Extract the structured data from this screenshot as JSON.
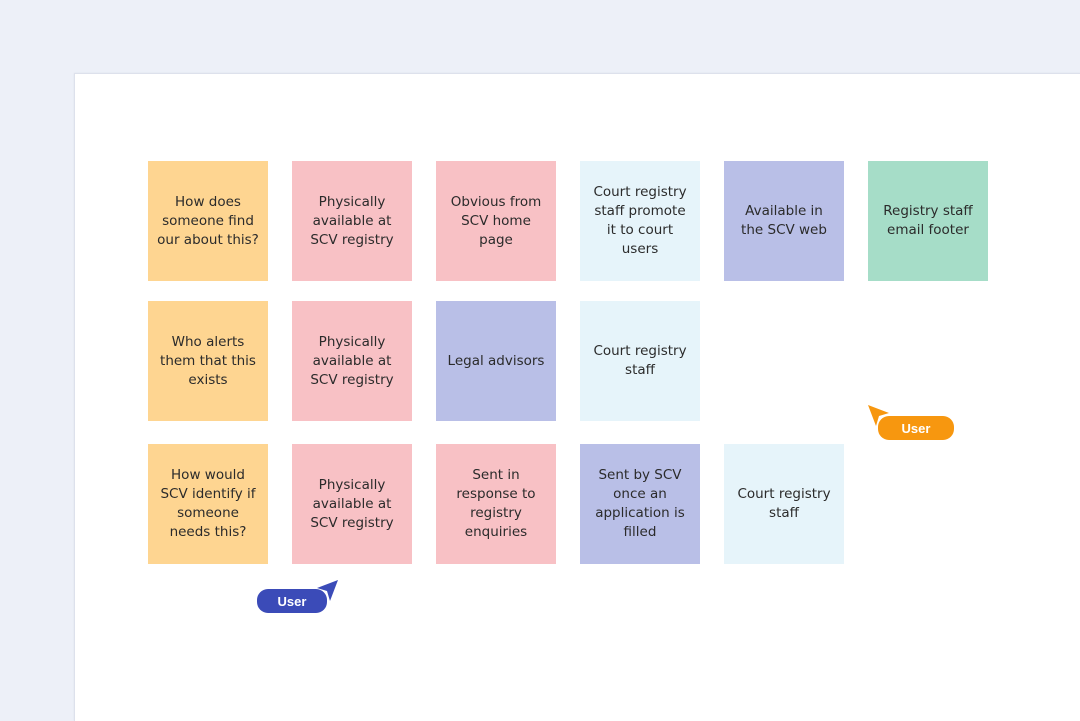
{
  "notes": [
    {
      "text": "How does someone find our about this?",
      "color": "#fed591"
    },
    {
      "text": "Physically available at SCV registry",
      "color": "#f8c1c5"
    },
    {
      "text": "Obvious from SCV home page",
      "color": "#f8c1c5"
    },
    {
      "text": "Court registry staff promote it to court users",
      "color": "#e6f4fa"
    },
    {
      "text": "Available in the SCV web",
      "color": "#b9bfe7"
    },
    {
      "text": "Registry staff email footer",
      "color": "#a6ddc8"
    },
    {
      "text": "Who alerts them that this exists",
      "color": "#fed591"
    },
    {
      "text": "Physically available at SCV registry",
      "color": "#f8c1c5"
    },
    {
      "text": "Legal advisors",
      "color": "#b9bfe7"
    },
    {
      "text": "Court registry staff",
      "color": "#e6f4fa"
    },
    {
      "text": "How would SCV identify if someone needs this?",
      "color": "#fed591"
    },
    {
      "text": "Physically available at SCV registry",
      "color": "#f8c1c5"
    },
    {
      "text": "Sent in response to registry enquiries",
      "color": "#f8c1c5"
    },
    {
      "text": "Sent by SCV once an application is filled",
      "color": "#b9bfe7"
    },
    {
      "text": "Court registry staff",
      "color": "#e6f4fa"
    }
  ],
  "cursors": [
    {
      "label": "User",
      "color": "#f7970f",
      "icon": "cursor-arrow-icon"
    },
    {
      "label": "User",
      "color": "#3b4bb8",
      "icon": "cursor-arrow-icon"
    }
  ]
}
